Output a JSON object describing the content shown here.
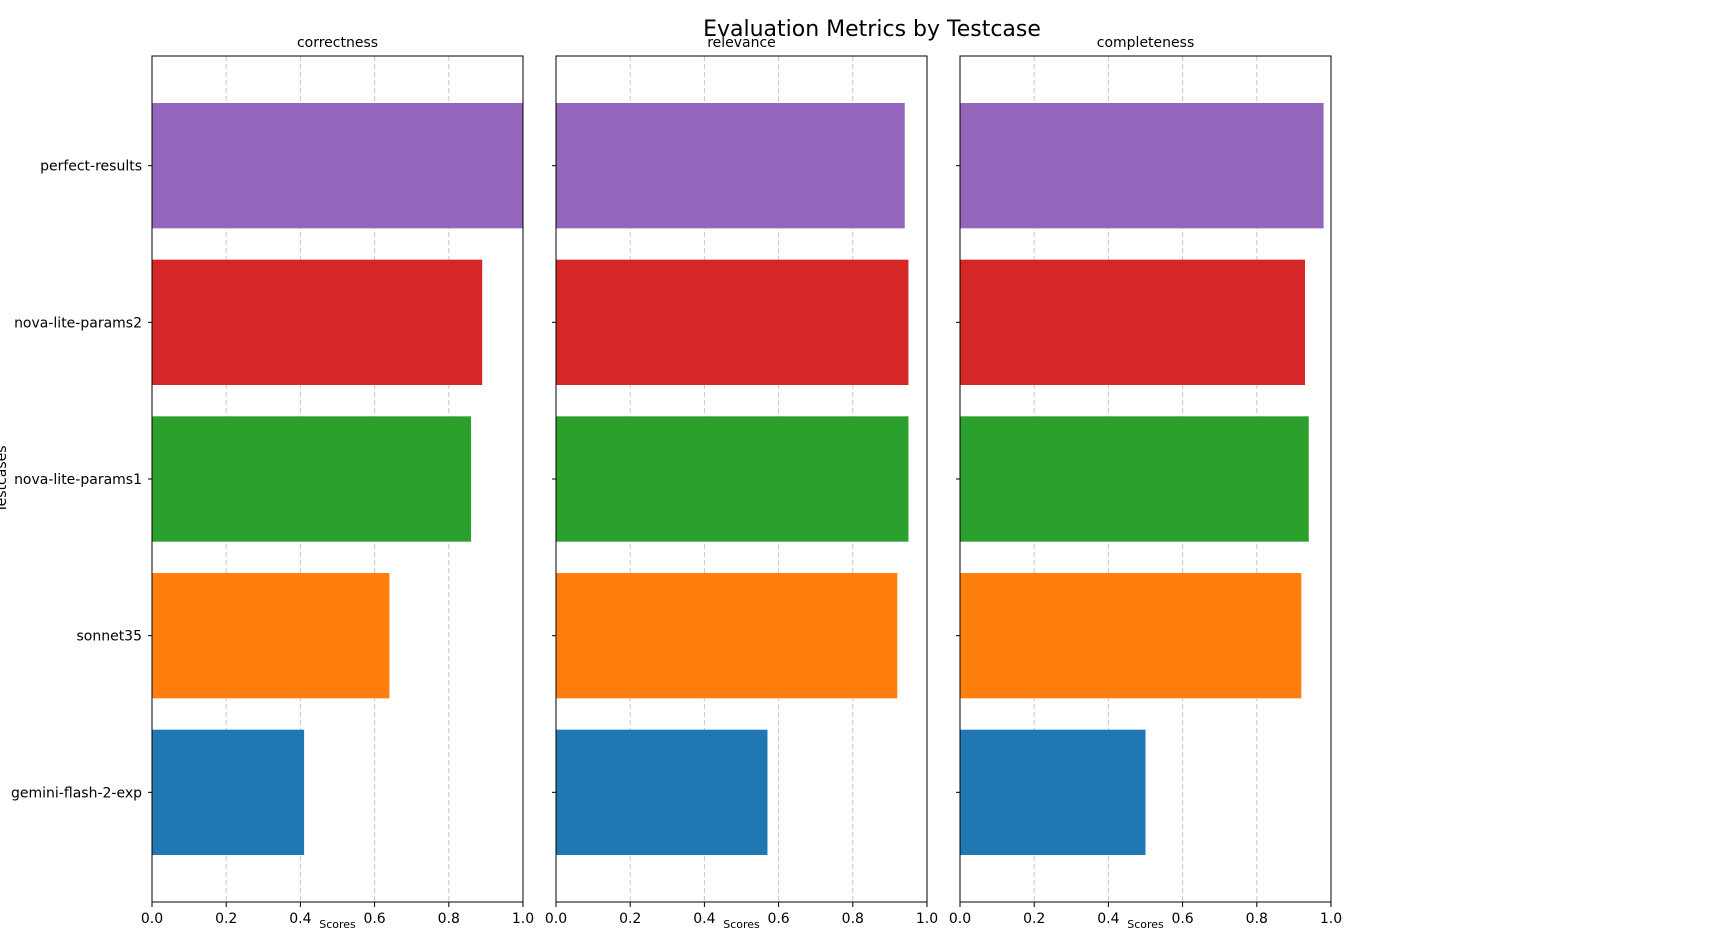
{
  "figure_title": "Evaluation Metrics by Testcase",
  "chart_data": [
    {
      "type": "bar",
      "orientation": "horizontal",
      "title": "correctness",
      "xlabel": "Scores",
      "ylabel": "Testcases",
      "xlim": [
        0,
        1
      ],
      "x_ticks": [
        "0.0",
        "0.2",
        "0.4",
        "0.6",
        "0.8",
        "1.0"
      ],
      "grid": "x-dashed",
      "categories": [
        "perfect-results",
        "nova-lite-params2",
        "nova-lite-params1",
        "sonnet35",
        "gemini-flash-2-exp"
      ],
      "values": [
        1.0,
        0.89,
        0.86,
        0.64,
        0.41
      ],
      "colors": [
        "#9467bd",
        "#d62728",
        "#2ca02c",
        "#ff7f0e",
        "#1f77b4"
      ]
    },
    {
      "type": "bar",
      "orientation": "horizontal",
      "title": "relevance",
      "xlabel": "Scores",
      "xlim": [
        0,
        1
      ],
      "x_ticks": [
        "0.0",
        "0.2",
        "0.4",
        "0.6",
        "0.8",
        "1.0"
      ],
      "grid": "x-dashed",
      "categories": [
        "perfect-results",
        "nova-lite-params2",
        "nova-lite-params1",
        "sonnet35",
        "gemini-flash-2-exp"
      ],
      "values": [
        0.94,
        0.95,
        0.95,
        0.92,
        0.57
      ],
      "colors": [
        "#9467bd",
        "#d62728",
        "#2ca02c",
        "#ff7f0e",
        "#1f77b4"
      ]
    },
    {
      "type": "bar",
      "orientation": "horizontal",
      "title": "completeness",
      "xlabel": "Scores",
      "xlim": [
        0,
        1
      ],
      "x_ticks": [
        "0.0",
        "0.2",
        "0.4",
        "0.6",
        "0.8",
        "1.0"
      ],
      "grid": "x-dashed",
      "categories": [
        "perfect-results",
        "nova-lite-params2",
        "nova-lite-params1",
        "sonnet35",
        "gemini-flash-2-exp"
      ],
      "values": [
        0.98,
        0.93,
        0.94,
        0.92,
        0.5
      ],
      "colors": [
        "#9467bd",
        "#d62728",
        "#2ca02c",
        "#ff7f0e",
        "#1f77b4"
      ]
    }
  ]
}
